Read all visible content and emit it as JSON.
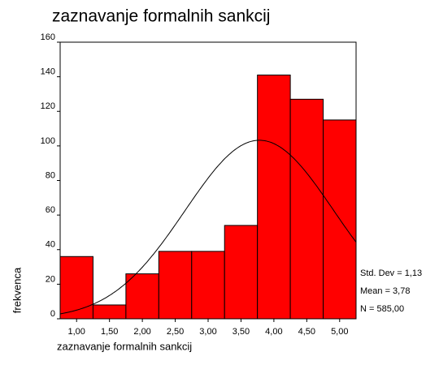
{
  "chart_data": {
    "type": "histogram",
    "title": "zaznavanje formalnih sankcij",
    "xlabel": "zaznavanje formalnih sankcij",
    "ylabel": "frekvenca",
    "bins": [
      0.75,
      1.25,
      1.75,
      2.25,
      2.75,
      3.25,
      3.75,
      4.25,
      4.75,
      5.25
    ],
    "values": [
      36,
      8,
      26,
      39,
      39,
      54,
      141,
      127,
      115
    ],
    "color": "#ff0000",
    "xlim": [
      0.75,
      5.25
    ],
    "xticks": [
      {
        "value": 1,
        "label": "1,00"
      },
      {
        "value": 1.5,
        "label": "1,50"
      },
      {
        "value": 2,
        "label": "2,00"
      },
      {
        "value": 2.5,
        "label": "2,50"
      },
      {
        "value": 3,
        "label": "3,00"
      },
      {
        "value": 3.5,
        "label": "3,50"
      },
      {
        "value": 4,
        "label": "4,00"
      },
      {
        "value": 4.5,
        "label": "4,50"
      },
      {
        "value": 5,
        "label": "5,00"
      }
    ],
    "ylim": [
      0,
      160
    ],
    "yticks": [
      0,
      20,
      40,
      60,
      80,
      100,
      120,
      140,
      160
    ],
    "stats": {
      "std_dev": {
        "value": 1.13,
        "label": "Std. Dev = 1,13"
      },
      "mean": {
        "value": 3.78,
        "label": "Mean = 3,78"
      },
      "n": {
        "value": 585,
        "label": "N = 585,00"
      }
    }
  }
}
